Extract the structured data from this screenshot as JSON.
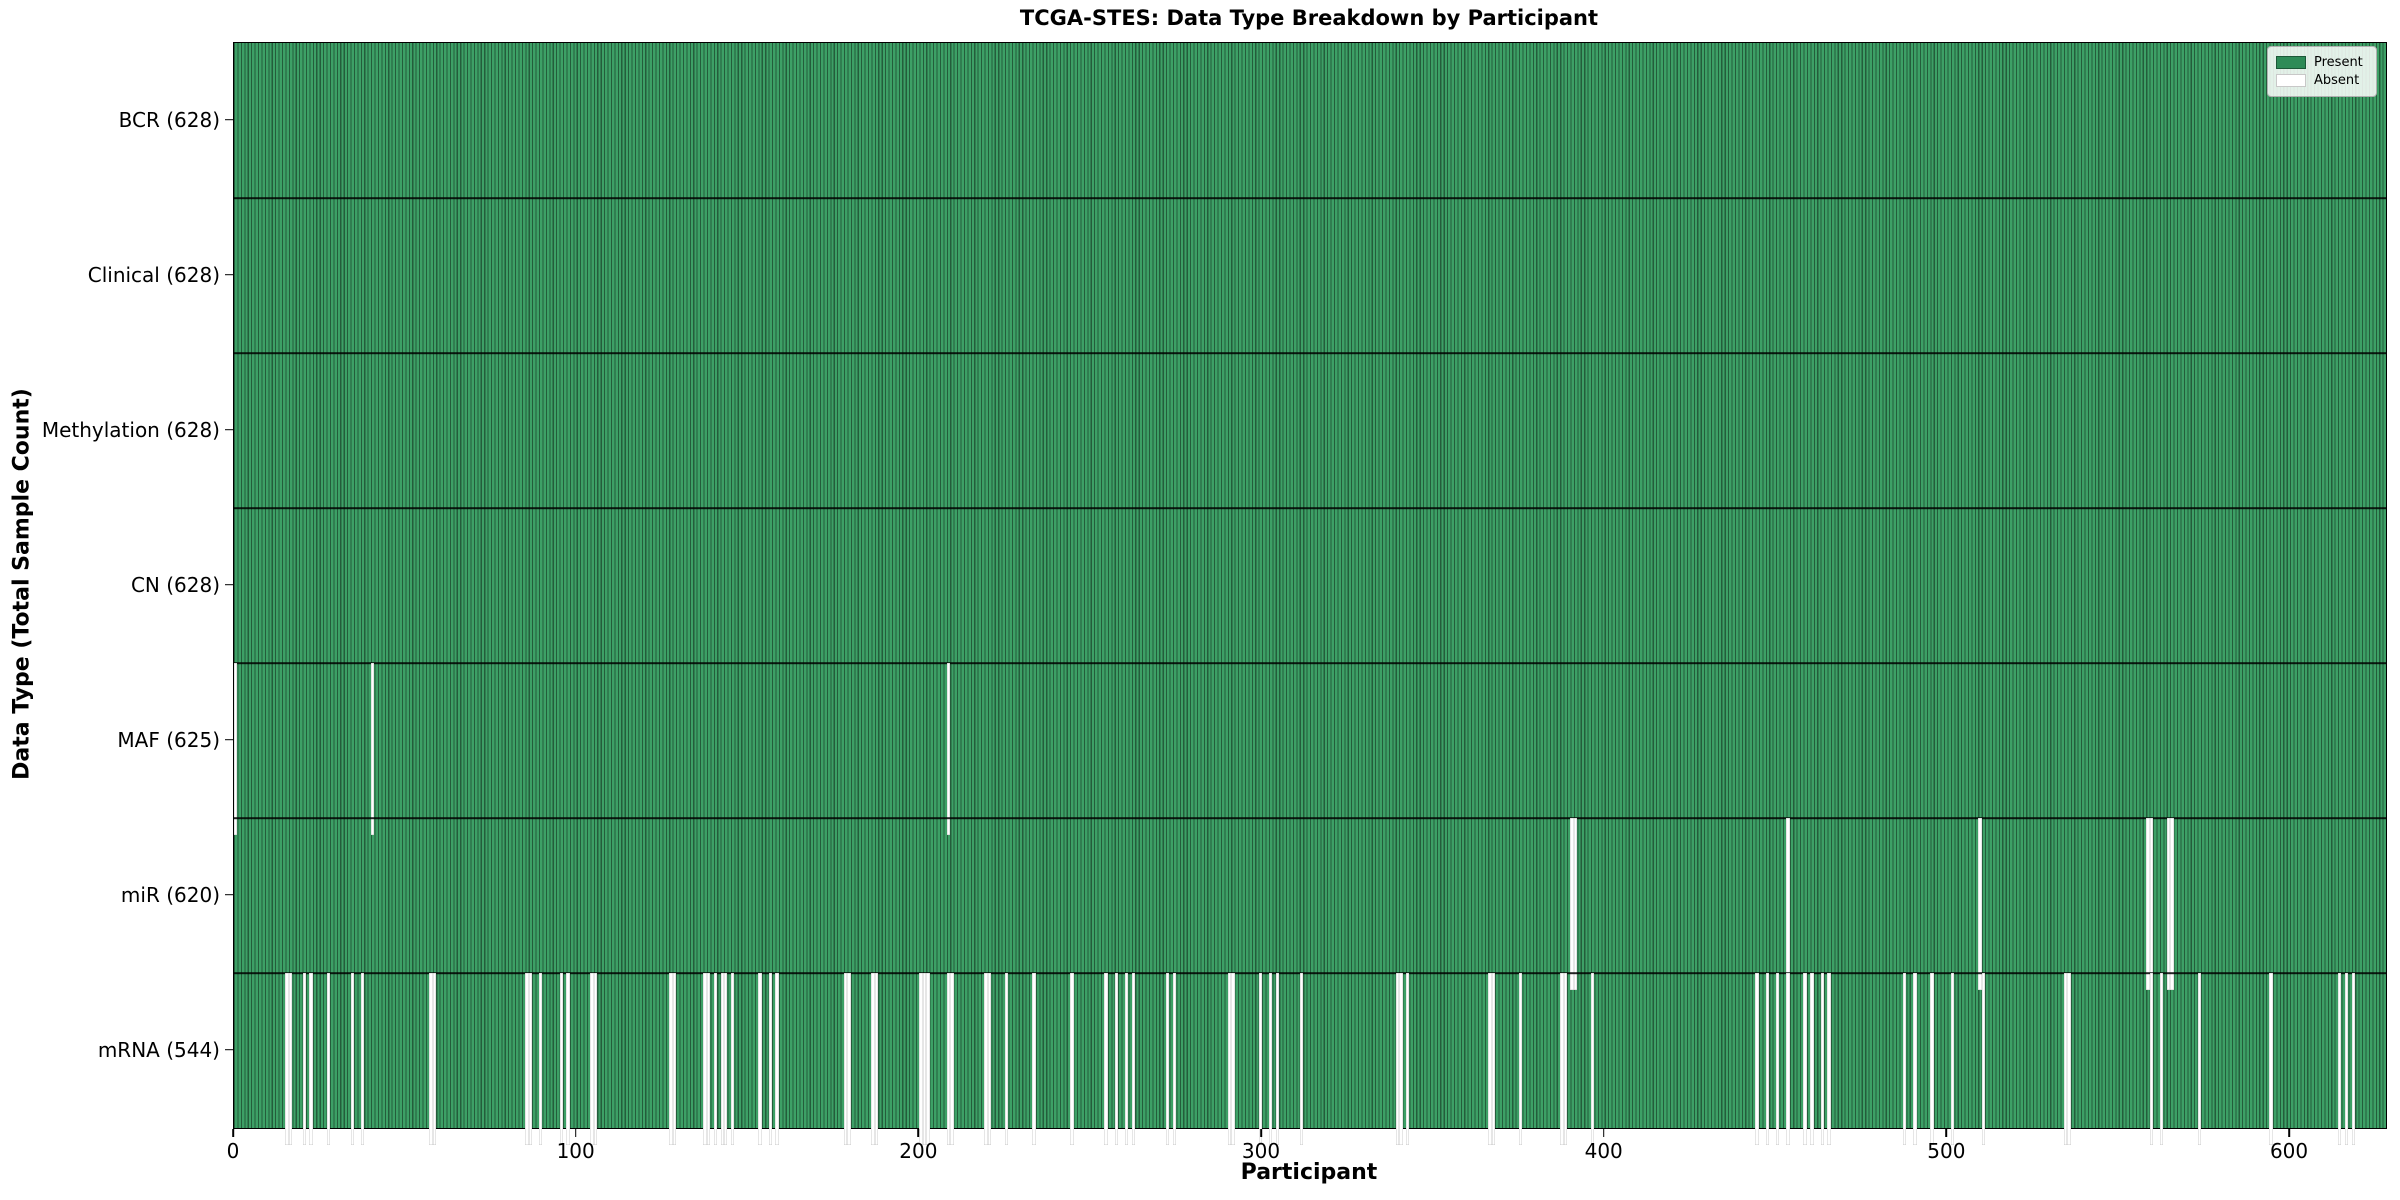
{
  "title": "TCGA-STES: Data Type Breakdown by Participant",
  "x_axis_label": "Participant",
  "y_axis_label": "Data Type (Total Sample Count)",
  "legend": {
    "present_label": "Present",
    "absent_label": "Absent"
  },
  "colors": {
    "present": "#2E8B57",
    "present_light": "#3da066",
    "absent": "#ffffff",
    "edge": "#000000"
  },
  "chart_data": {
    "type": "heatmap",
    "title": "TCGA-STES: Data Type Breakdown by Participant",
    "xlabel": "Participant",
    "ylabel": "Data Type (Total Sample Count)",
    "x_range": [
      0,
      628
    ],
    "x_ticks": [
      0,
      100,
      200,
      300,
      400,
      500,
      600
    ],
    "grid": false,
    "legend_position": "upper right",
    "legend_entries": [
      "Present",
      "Absent"
    ],
    "cell_states": {
      "present": 1,
      "absent": 0
    },
    "rows": [
      {
        "label": "BCR (628)",
        "name": "BCR",
        "total": 628,
        "absent": []
      },
      {
        "label": "Clinical (628)",
        "name": "Clinical",
        "total": 628,
        "absent": []
      },
      {
        "label": "Methylation (628)",
        "name": "Methylation",
        "total": 628,
        "absent": []
      },
      {
        "label": "CN (628)",
        "name": "CN",
        "total": 628,
        "absent": []
      },
      {
        "label": "MAF (625)",
        "name": "MAF",
        "total": 625,
        "absent": [
          0,
          40,
          208
        ]
      },
      {
        "label": "miR (620)",
        "name": "miR",
        "total": 620,
        "absent": [
          390,
          391,
          453,
          509,
          558,
          559,
          564,
          565
        ]
      },
      {
        "label": "mRNA (544)",
        "name": "mRNA",
        "total": 544,
        "absent": [
          15,
          16,
          20,
          22,
          27,
          34,
          37,
          57,
          58,
          85,
          86,
          89,
          95,
          97,
          104,
          105,
          127,
          128,
          137,
          138,
          140,
          142,
          143,
          145,
          153,
          156,
          158,
          178,
          179,
          186,
          187,
          200,
          201,
          202,
          208,
          209,
          219,
          220,
          225,
          233,
          244,
          254,
          257,
          260,
          262,
          272,
          274,
          290,
          291,
          299,
          302,
          304,
          311,
          339,
          340,
          342,
          366,
          367,
          375,
          387,
          388,
          396,
          444,
          447,
          450,
          453,
          458,
          460,
          463,
          465,
          487,
          490,
          495,
          501,
          510,
          534,
          535,
          559,
          562,
          573,
          594,
          614,
          616,
          618
        ]
      }
    ]
  }
}
